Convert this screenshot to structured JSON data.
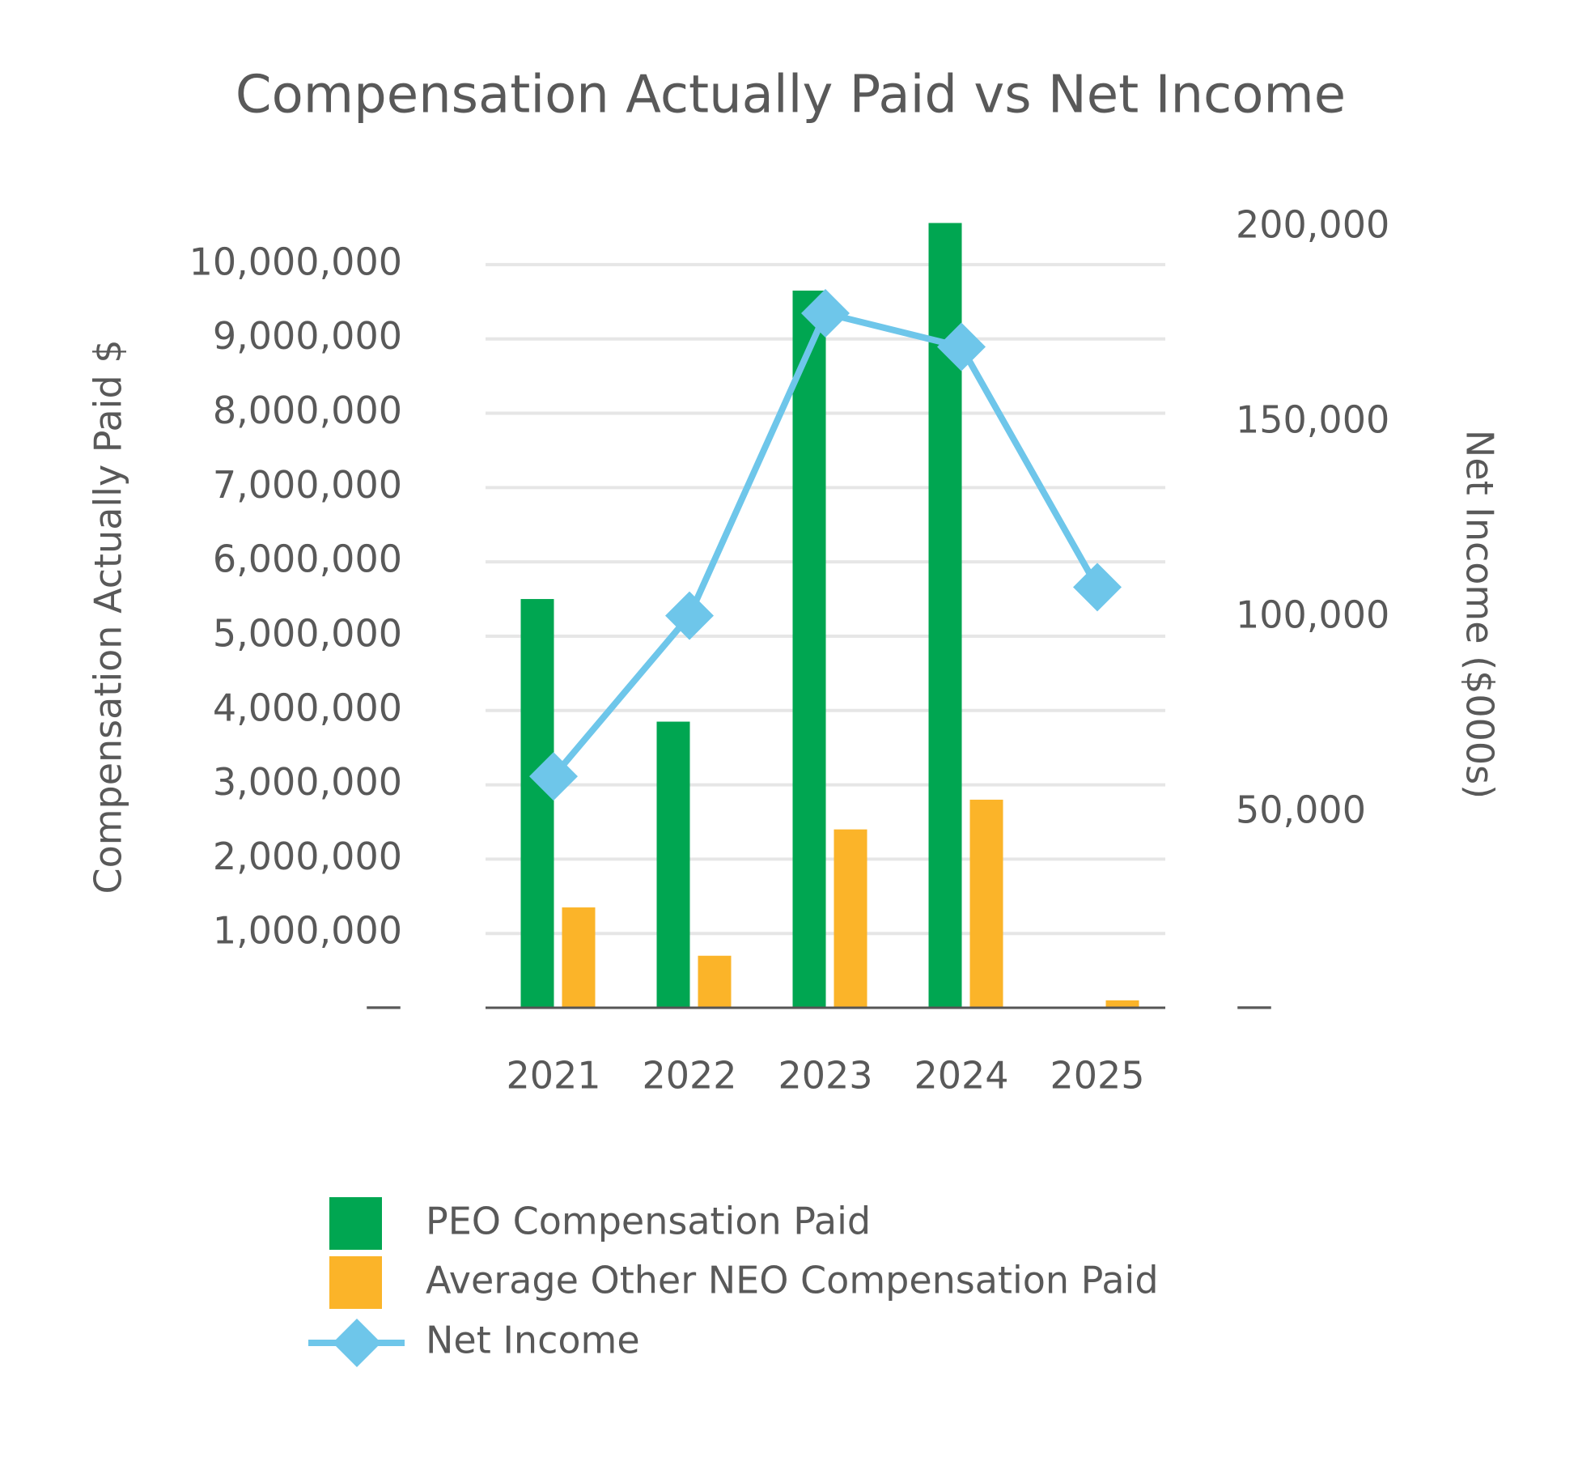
{
  "chart_data": {
    "type": "bar",
    "title": "Compensation Actually Paid vs Net Income",
    "ylabel": "Compensation Actually Paid $",
    "y2label": "Net Income ($000s)",
    "categories": [
      "2021",
      "2022",
      "2023",
      "2024",
      "2025"
    ],
    "series": [
      {
        "name": "PEO Compensation Paid",
        "type": "bar",
        "color": "#00a651",
        "values": [
          5500000,
          3850000,
          9650000,
          10560000,
          0
        ]
      },
      {
        "name": "Average Other NEO Compensation Paid",
        "type": "bar",
        "color": "#fbb429",
        "values": [
          1350000,
          700000,
          2400000,
          2800000,
          100000
        ]
      },
      {
        "name": "Net Income",
        "type": "line",
        "axis": "y2",
        "color": "#6ec6ea",
        "values": [
          59300,
          100500,
          178000,
          169400,
          107800
        ]
      }
    ],
    "ylim": [
      0,
      10500000
    ],
    "yticks": [
      {
        "value": 0,
        "label": "—"
      },
      {
        "value": 1000000,
        "label": "1,000,000"
      },
      {
        "value": 2000000,
        "label": "2,000,000"
      },
      {
        "value": 3000000,
        "label": "3,000,000"
      },
      {
        "value": 4000000,
        "label": "4,000,000"
      },
      {
        "value": 5000000,
        "label": "5,000,000"
      },
      {
        "value": 6000000,
        "label": "6,000,000"
      },
      {
        "value": 7000000,
        "label": "7,000,000"
      },
      {
        "value": 8000000,
        "label": "8,000,000"
      },
      {
        "value": 9000000,
        "label": "9,000,000"
      },
      {
        "value": 10000000,
        "label": "10,000,000"
      }
    ],
    "y2lim": [
      0,
      200000
    ],
    "y2ticks": [
      {
        "value": 0,
        "label": "—"
      },
      {
        "value": 50000,
        "label": "50,000"
      },
      {
        "value": 100000,
        "label": "100,000"
      },
      {
        "value": 150000,
        "label": "150,000"
      },
      {
        "value": 200000,
        "label": "200,000"
      }
    ],
    "grid": true
  }
}
